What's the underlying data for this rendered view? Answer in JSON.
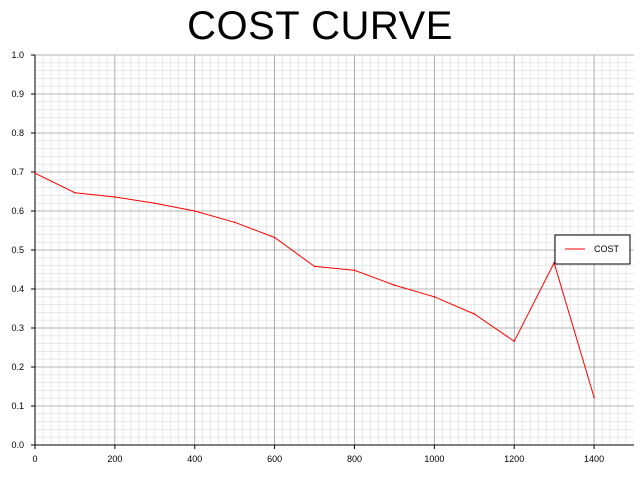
{
  "chart_data": {
    "type": "line",
    "title": "COST CURVE",
    "xlabel": "",
    "ylabel": "",
    "xlim": [
      0,
      1500
    ],
    "ylim": [
      0,
      1.0
    ],
    "x_ticks": [
      0,
      200,
      400,
      600,
      800,
      1000,
      1200,
      1400
    ],
    "x_tick_labels": [
      "0",
      "200",
      "400",
      "600",
      "800",
      "1000",
      "1200",
      "1400"
    ],
    "y_ticks": [
      0,
      0.1,
      0.2,
      0.3,
      0.4,
      0.5,
      0.6,
      0.7,
      0.8,
      0.9,
      1.0
    ],
    "y_tick_labels": [
      "0.0",
      "0.1",
      "0.2",
      "0.3",
      "0.4",
      "0.5",
      "0.6",
      "0.7",
      "0.8",
      "0.9",
      "1.0"
    ],
    "grid": true,
    "legend_position": "right",
    "series": [
      {
        "name": "COST",
        "color": "#ff0000",
        "x": [
          0,
          100,
          200,
          300,
          400,
          500,
          600,
          700,
          800,
          900,
          1000,
          1100,
          1200,
          1300,
          1400
        ],
        "y": [
          0.697,
          0.647,
          0.636,
          0.62,
          0.6,
          0.571,
          0.532,
          0.458,
          0.448,
          0.41,
          0.38,
          0.336,
          0.266,
          0.467,
          0.122
        ]
      }
    ]
  }
}
